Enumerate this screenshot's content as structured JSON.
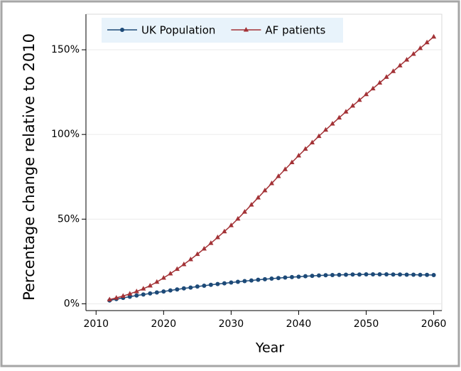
{
  "chart_data": {
    "type": "line",
    "xlabel": "Year",
    "ylabel": "Percentage change relative to 2010",
    "x": [
      2012,
      2013,
      2014,
      2015,
      2016,
      2017,
      2018,
      2019,
      2020,
      2021,
      2022,
      2023,
      2024,
      2025,
      2026,
      2027,
      2028,
      2029,
      2030,
      2031,
      2032,
      2033,
      2034,
      2035,
      2036,
      2037,
      2038,
      2039,
      2040,
      2041,
      2042,
      2043,
      2044,
      2045,
      2046,
      2047,
      2048,
      2049,
      2050,
      2051,
      2052,
      2053,
      2054,
      2055,
      2056,
      2057,
      2058,
      2059,
      2060
    ],
    "series": [
      {
        "name": "UK Population",
        "color": "#1d4a78",
        "marker": "circle",
        "values": [
          2.0,
          2.8,
          3.5,
          4.2,
          4.9,
          5.5,
          6.1,
          6.7,
          7.3,
          7.9,
          8.5,
          9.1,
          9.6,
          10.2,
          10.7,
          11.2,
          11.7,
          12.1,
          12.6,
          13.0,
          13.4,
          13.8,
          14.2,
          14.5,
          14.9,
          15.2,
          15.5,
          15.8,
          16.0,
          16.3,
          16.5,
          16.7,
          16.9,
          17.0,
          17.1,
          17.2,
          17.3,
          17.3,
          17.4,
          17.4,
          17.4,
          17.4,
          17.3,
          17.3,
          17.2,
          17.2,
          17.1,
          17.1,
          17.0
        ]
      },
      {
        "name": "AF patients",
        "color": "#a33236",
        "marker": "triangle",
        "values": [
          2.5,
          3.5,
          4.6,
          5.9,
          7.3,
          8.9,
          10.7,
          12.9,
          15.3,
          17.8,
          20.5,
          23.3,
          26.2,
          29.3,
          32.5,
          35.8,
          39.2,
          42.7,
          46.3,
          50.2,
          54.3,
          58.5,
          62.7,
          66.9,
          71.1,
          75.3,
          79.4,
          83.5,
          87.5,
          91.4,
          95.2,
          99.0,
          102.7,
          106.3,
          109.9,
          113.4,
          116.9,
          120.3,
          123.7,
          127.1,
          130.5,
          133.9,
          137.3,
          140.7,
          144.1,
          147.5,
          150.9,
          154.3,
          157.7
        ]
      }
    ],
    "xlim": [
      2008.5,
      2061.2
    ],
    "xticks": [
      2010,
      2020,
      2030,
      2040,
      2050,
      2060
    ],
    "ylim": [
      -4,
      171
    ],
    "yticks": [
      {
        "value": 0,
        "label": "0%"
      },
      {
        "value": 50,
        "label": "50%"
      },
      {
        "value": 100,
        "label": "100%"
      },
      {
        "value": 150,
        "label": "150%"
      }
    ],
    "grid": true,
    "legend": "top"
  }
}
